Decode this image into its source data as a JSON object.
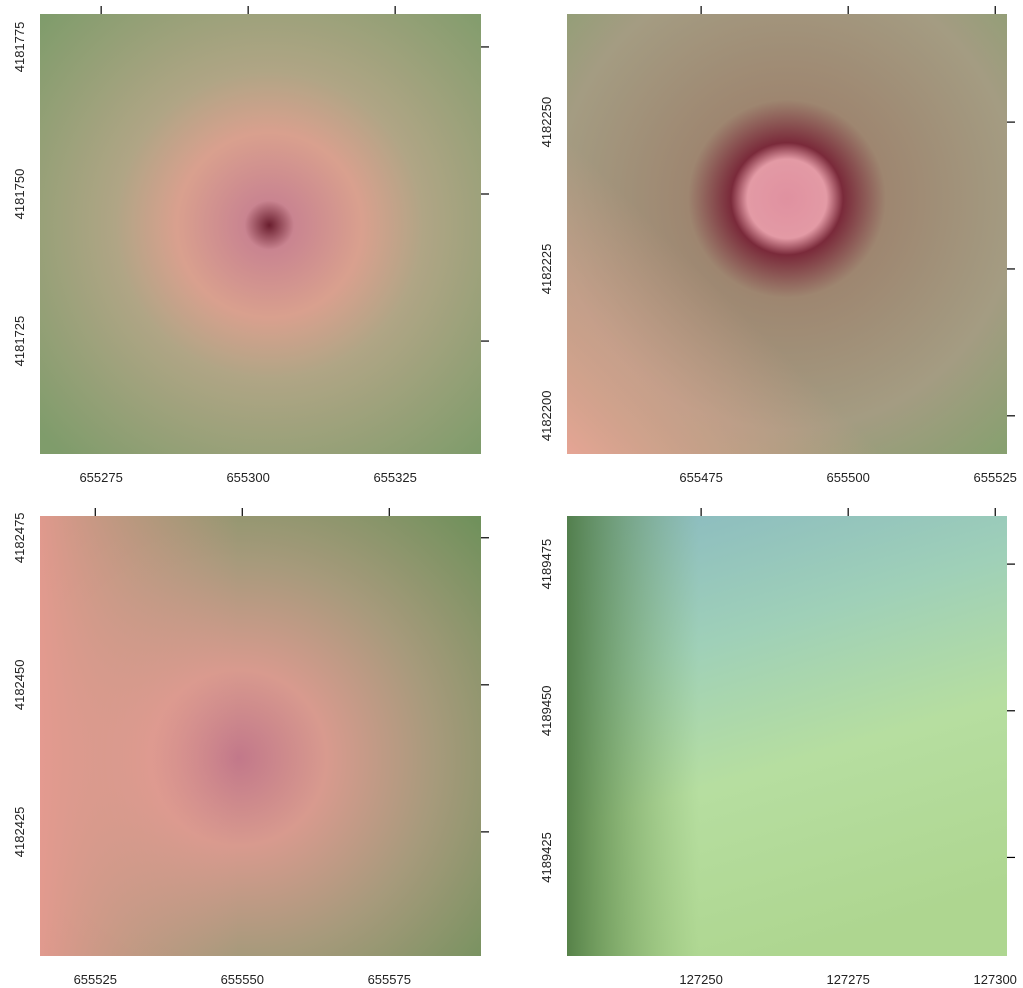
{
  "chart_data": [
    {
      "type": "raster",
      "xlim": [
        655264.6,
        655339.6
      ],
      "ylim": [
        4181705.8,
        4181780.6
      ],
      "xticks": [
        655275,
        655300,
        655325
      ],
      "yticks": [
        4181725,
        4181750,
        4181775
      ]
    },
    {
      "type": "raster",
      "xlim": [
        655452.2,
        655527
      ],
      "ylim": [
        4182193.5,
        4182268.4
      ],
      "xticks": [
        655475,
        655500,
        655525
      ],
      "yticks": [
        4182200,
        4182225,
        4182250
      ]
    },
    {
      "type": "raster",
      "xlim": [
        655515.6,
        655590.6
      ],
      "ylim": [
        4182403.9,
        4182478.7
      ],
      "xticks": [
        655525,
        655550,
        655575
      ],
      "yticks": [
        4182425,
        4182450,
        4182475
      ]
    },
    {
      "type": "raster",
      "xlim": [
        127227.2,
        127302
      ],
      "ylim": [
        4189408.2,
        4189483.2
      ],
      "xticks": [
        127250,
        127275,
        127300
      ],
      "yticks": [
        4189425,
        4189450,
        4189475
      ]
    }
  ]
}
